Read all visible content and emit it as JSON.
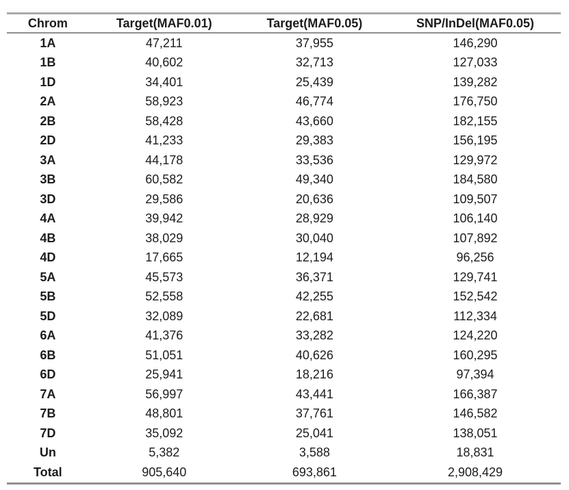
{
  "page": {
    "background_color": "#ffffff",
    "text_color": "#1c1c1c",
    "rule_color": "#9a9a9a"
  },
  "table": {
    "columns": [
      {
        "id": "chrom",
        "label": "Chrom"
      },
      {
        "id": "target-maf001",
        "label": "Target(MAF0.01)"
      },
      {
        "id": "target-maf005",
        "label": "Target(MAF0.05)"
      },
      {
        "id": "snp-indel-maf005",
        "label": "SNP/InDel(MAF0.05)"
      }
    ],
    "rows": [
      [
        "1A",
        "47,211",
        "37,955",
        "146,290"
      ],
      [
        "1B",
        "40,602",
        "32,713",
        "127,033"
      ],
      [
        "1D",
        "34,401",
        "25,439",
        "139,282"
      ],
      [
        "2A",
        "58,923",
        "46,774",
        "176,750"
      ],
      [
        "2B",
        "58,428",
        "43,660",
        "182,155"
      ],
      [
        "2D",
        "41,233",
        "29,383",
        "156,195"
      ],
      [
        "3A",
        "44,178",
        "33,536",
        "129,972"
      ],
      [
        "3B",
        "60,582",
        "49,340",
        "184,580"
      ],
      [
        "3D",
        "29,586",
        "20,636",
        "109,507"
      ],
      [
        "4A",
        "39,942",
        "28,929",
        "106,140"
      ],
      [
        "4B",
        "38,029",
        "30,040",
        "107,892"
      ],
      [
        "4D",
        "17,665",
        "12,194",
        "96,256"
      ],
      [
        "5A",
        "45,573",
        "36,371",
        "129,741"
      ],
      [
        "5B",
        "52,558",
        "42,255",
        "152,542"
      ],
      [
        "5D",
        "32,089",
        "22,681",
        "112,334"
      ],
      [
        "6A",
        "41,376",
        "33,282",
        "124,220"
      ],
      [
        "6B",
        "51,051",
        "40,626",
        "160,295"
      ],
      [
        "6D",
        "25,941",
        "18,216",
        "97,394"
      ],
      [
        "7A",
        "56,997",
        "43,441",
        "166,387"
      ],
      [
        "7B",
        "48,801",
        "37,761",
        "146,582"
      ],
      [
        "7D",
        "35,092",
        "25,041",
        "138,051"
      ],
      [
        "Un",
        "5,382",
        "3,588",
        "18,831"
      ],
      [
        "Total",
        "905,640",
        "693,861",
        "2,908,429"
      ]
    ]
  },
  "chart_data": {
    "type": "table",
    "title": "",
    "columns": [
      "Chrom",
      "Target(MAF0.01)",
      "Target(MAF0.05)",
      "SNP/InDel(MAF0.05)"
    ],
    "rows": [
      [
        "1A",
        47211,
        37955,
        146290
      ],
      [
        "1B",
        40602,
        32713,
        127033
      ],
      [
        "1D",
        34401,
        25439,
        139282
      ],
      [
        "2A",
        58923,
        46774,
        176750
      ],
      [
        "2B",
        58428,
        43660,
        182155
      ],
      [
        "2D",
        41233,
        29383,
        156195
      ],
      [
        "3A",
        44178,
        33536,
        129972
      ],
      [
        "3B",
        60582,
        49340,
        184580
      ],
      [
        "3D",
        29586,
        20636,
        109507
      ],
      [
        "4A",
        39942,
        28929,
        106140
      ],
      [
        "4B",
        38029,
        30040,
        107892
      ],
      [
        "4D",
        17665,
        12194,
        96256
      ],
      [
        "5A",
        45573,
        36371,
        129741
      ],
      [
        "5B",
        52558,
        42255,
        152542
      ],
      [
        "5D",
        32089,
        22681,
        112334
      ],
      [
        "6A",
        41376,
        33282,
        124220
      ],
      [
        "6B",
        51051,
        40626,
        160295
      ],
      [
        "6D",
        25941,
        18216,
        97394
      ],
      [
        "7A",
        56997,
        43441,
        166387
      ],
      [
        "7B",
        48801,
        37761,
        146582
      ],
      [
        "7D",
        35092,
        25041,
        138051
      ],
      [
        "Un",
        5382,
        3588,
        18831
      ],
      [
        "Total",
        905640,
        693861,
        2908429
      ]
    ]
  }
}
